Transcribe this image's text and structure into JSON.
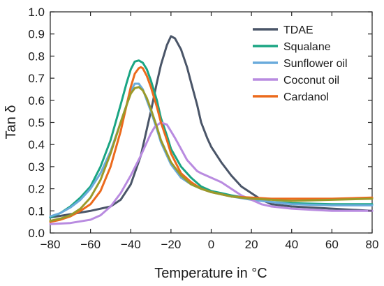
{
  "chart_data": {
    "type": "line",
    "title": "",
    "xlabel": "Temperature in °C",
    "ylabel": "Tan δ",
    "xlim": [
      -80,
      80
    ],
    "ylim": [
      0.0,
      1.0
    ],
    "xticks": [
      "−80",
      "−60",
      "−40",
      "−20",
      "0",
      "20",
      "40",
      "60",
      "80"
    ],
    "xtick_values": [
      -80,
      -60,
      -40,
      -20,
      0,
      20,
      40,
      60,
      80
    ],
    "yticks": [
      "0.0",
      "0.1",
      "0.2",
      "0.3",
      "0.4",
      "0.5",
      "0.6",
      "0.7",
      "0.8",
      "0.9",
      "1.0"
    ],
    "ytick_values": [
      0.0,
      0.1,
      0.2,
      0.3,
      0.4,
      0.5,
      0.6,
      0.7,
      0.8,
      0.9,
      1.0
    ],
    "grid": false,
    "legend_position": "top-right",
    "series": [
      {
        "name": "TDAE",
        "color": "#4a5568",
        "x": [
          -80,
          -70,
          -60,
          -50,
          -45,
          -40,
          -35,
          -30,
          -27,
          -25,
          -22,
          -20,
          -18,
          -15,
          -12,
          -10,
          -7,
          -5,
          -2,
          0,
          5,
          10,
          15,
          20,
          25,
          30,
          40,
          50,
          60,
          70,
          80
        ],
        "y": [
          0.07,
          0.085,
          0.1,
          0.12,
          0.15,
          0.22,
          0.35,
          0.55,
          0.68,
          0.76,
          0.85,
          0.89,
          0.88,
          0.83,
          0.75,
          0.68,
          0.58,
          0.5,
          0.43,
          0.39,
          0.32,
          0.26,
          0.21,
          0.18,
          0.15,
          0.13,
          0.12,
          0.115,
          0.11,
          0.105,
          0.1
        ]
      },
      {
        "name": "Squalane",
        "color": "#1aa583",
        "x": [
          -80,
          -75,
          -70,
          -65,
          -60,
          -55,
          -50,
          -45,
          -42,
          -40,
          -38,
          -36,
          -34,
          -32,
          -30,
          -27,
          -25,
          -22,
          -20,
          -15,
          -10,
          -5,
          0,
          5,
          10,
          20,
          30,
          40,
          60,
          80
        ],
        "y": [
          0.07,
          0.09,
          0.12,
          0.16,
          0.21,
          0.3,
          0.42,
          0.58,
          0.68,
          0.74,
          0.775,
          0.78,
          0.77,
          0.74,
          0.69,
          0.6,
          0.52,
          0.44,
          0.38,
          0.3,
          0.25,
          0.21,
          0.19,
          0.18,
          0.17,
          0.155,
          0.14,
          0.135,
          0.13,
          0.13
        ]
      },
      {
        "name": "Sunflower oil",
        "color": "#6aabdc",
        "x": [
          -80,
          -75,
          -70,
          -65,
          -60,
          -55,
          -50,
          -45,
          -42,
          -40,
          -38,
          -36,
          -34,
          -32,
          -30,
          -27,
          -25,
          -22,
          -20,
          -15,
          -10,
          -5,
          0,
          5,
          10,
          20,
          30,
          40,
          60,
          80
        ],
        "y": [
          0.075,
          0.09,
          0.115,
          0.15,
          0.2,
          0.27,
          0.37,
          0.5,
          0.58,
          0.64,
          0.675,
          0.675,
          0.65,
          0.6,
          0.55,
          0.47,
          0.41,
          0.35,
          0.31,
          0.25,
          0.22,
          0.2,
          0.185,
          0.175,
          0.165,
          0.15,
          0.14,
          0.13,
          0.125,
          0.125
        ]
      },
      {
        "name": "Coconut oil",
        "color": "#b98be0",
        "x": [
          -80,
          -70,
          -60,
          -55,
          -50,
          -45,
          -40,
          -35,
          -32,
          -30,
          -28,
          -25,
          -22,
          -20,
          -18,
          -15,
          -12,
          -10,
          -7,
          -5,
          0,
          5,
          10,
          15,
          20,
          25,
          30,
          40,
          50,
          60,
          70,
          80
        ],
        "y": [
          0.04,
          0.045,
          0.06,
          0.08,
          0.12,
          0.18,
          0.26,
          0.35,
          0.41,
          0.45,
          0.48,
          0.5,
          0.49,
          0.46,
          0.43,
          0.38,
          0.33,
          0.31,
          0.28,
          0.27,
          0.25,
          0.23,
          0.2,
          0.17,
          0.15,
          0.13,
          0.12,
          0.11,
          0.105,
          0.1,
          0.1,
          0.1
        ]
      },
      {
        "name": "Cardanol",
        "color": "#ec6a1c",
        "x": [
          -80,
          -75,
          -70,
          -65,
          -60,
          -55,
          -50,
          -45,
          -42,
          -40,
          -38,
          -36,
          -35,
          -34,
          -32,
          -30,
          -27,
          -25,
          -22,
          -20,
          -15,
          -10,
          -5,
          0,
          5,
          10,
          20,
          30,
          40,
          60,
          80
        ],
        "y": [
          0.05,
          0.06,
          0.075,
          0.1,
          0.13,
          0.19,
          0.3,
          0.46,
          0.58,
          0.66,
          0.72,
          0.745,
          0.75,
          0.745,
          0.71,
          0.66,
          0.57,
          0.5,
          0.42,
          0.36,
          0.27,
          0.23,
          0.2,
          0.185,
          0.175,
          0.165,
          0.16,
          0.155,
          0.155,
          0.155,
          0.16
        ]
      },
      {
        "name": "",
        "color": "#9a9a2a",
        "x": [
          -80,
          -75,
          -70,
          -65,
          -60,
          -55,
          -50,
          -45,
          -42,
          -40,
          -38,
          -36,
          -34,
          -32,
          -30,
          -27,
          -25,
          -22,
          -20,
          -15,
          -10,
          -5,
          0,
          5,
          10,
          20,
          30,
          40,
          60,
          80
        ],
        "y": [
          0.055,
          0.065,
          0.08,
          0.11,
          0.16,
          0.24,
          0.36,
          0.5,
          0.58,
          0.63,
          0.655,
          0.66,
          0.645,
          0.61,
          0.56,
          0.48,
          0.42,
          0.36,
          0.32,
          0.26,
          0.22,
          0.2,
          0.185,
          0.175,
          0.165,
          0.155,
          0.15,
          0.145,
          0.15,
          0.155
        ]
      }
    ]
  }
}
